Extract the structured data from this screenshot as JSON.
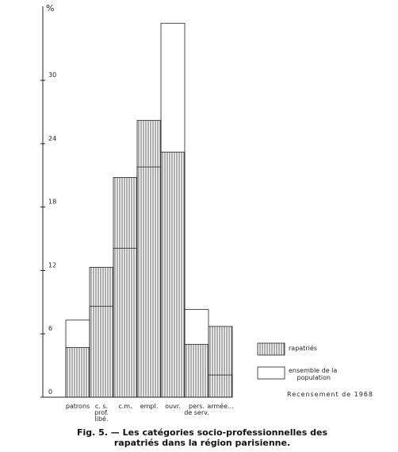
{
  "chart_data": {
    "type": "overlapping-bar",
    "title": "Fig. 5. — Les catégories socio-professionnelles des rapatriés dans la région parisienne.",
    "y_label": "%",
    "annotation": "Recensement de 1968",
    "categories": [
      "patrons",
      "c. s.\nprof.\nlibé.",
      "c.m.",
      "empl.",
      "ouvr.",
      "pers.\nde serv.",
      "armée..."
    ],
    "series": [
      {
        "name": "rapatriés",
        "color": "#333333",
        "values": [
          4.7,
          12.3,
          20.8,
          26.2,
          23.2,
          5.0,
          6.7
        ]
      },
      {
        "name": "ensemble de la population",
        "color": "#ffffff",
        "values": [
          7.3,
          8.6,
          14.1,
          21.8,
          35.4,
          8.3,
          2.1
        ]
      }
    ],
    "ylim": [
      0,
      37
    ],
    "yticks": [
      0,
      6,
      12,
      18,
      24,
      30
    ]
  }
}
